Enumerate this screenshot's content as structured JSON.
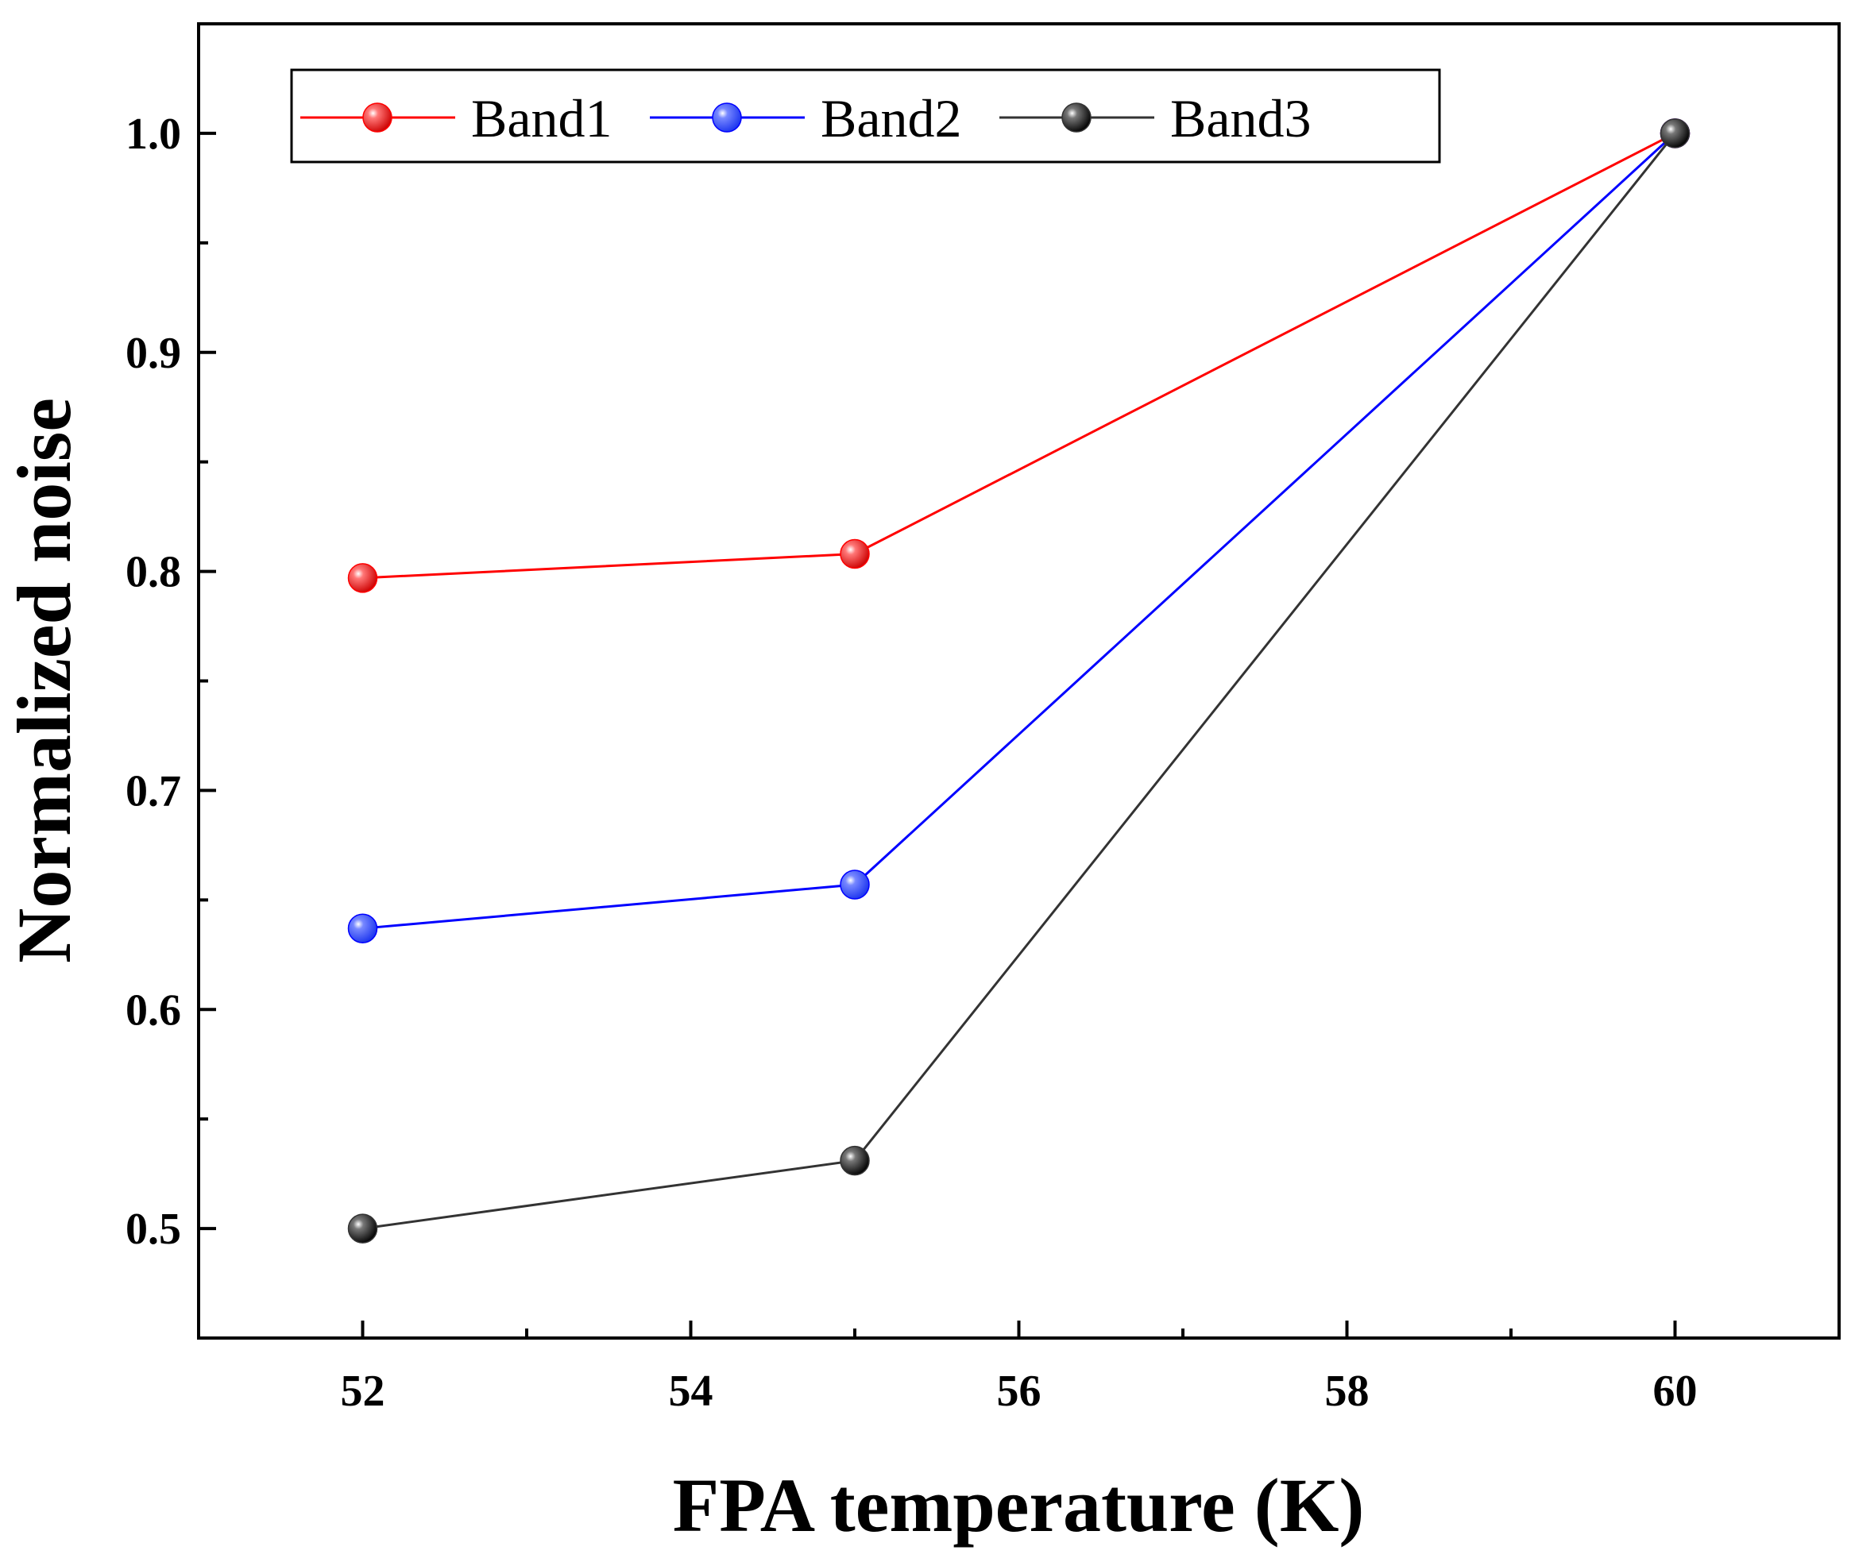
{
  "chart_data": {
    "type": "line",
    "title": "",
    "xlabel": "FPA temperature (K)",
    "ylabel": "Normalized noise",
    "xlim": [
      51,
      61
    ],
    "ylim": [
      0.45,
      1.05
    ],
    "x_ticks": [
      52,
      54,
      56,
      58,
      60
    ],
    "x_tick_labels": [
      "52",
      "54",
      "56",
      "58",
      "60"
    ],
    "y_ticks": [
      0.5,
      0.6,
      0.7,
      0.8,
      0.9,
      1.0
    ],
    "y_tick_labels": [
      "0.5",
      "0.6",
      "0.7",
      "0.8",
      "0.9",
      "1.0"
    ],
    "x_minor_ticks": [
      53,
      55,
      57,
      59
    ],
    "y_minor_ticks": [
      0.55,
      0.65,
      0.75,
      0.85,
      0.95
    ],
    "grid": false,
    "legend_position": "top-left",
    "series": [
      {
        "name": "Band1",
        "color": "#ff0000",
        "x": [
          52,
          55,
          60
        ],
        "values": [
          0.797,
          0.808,
          1.0
        ]
      },
      {
        "name": "Band2",
        "color": "#0000ff",
        "x": [
          52,
          55,
          60
        ],
        "values": [
          0.637,
          0.657,
          1.0
        ]
      },
      {
        "name": "Band3",
        "color": "#333333",
        "x": [
          52,
          55,
          60
        ],
        "values": [
          0.5,
          0.531,
          1.0
        ]
      }
    ]
  }
}
